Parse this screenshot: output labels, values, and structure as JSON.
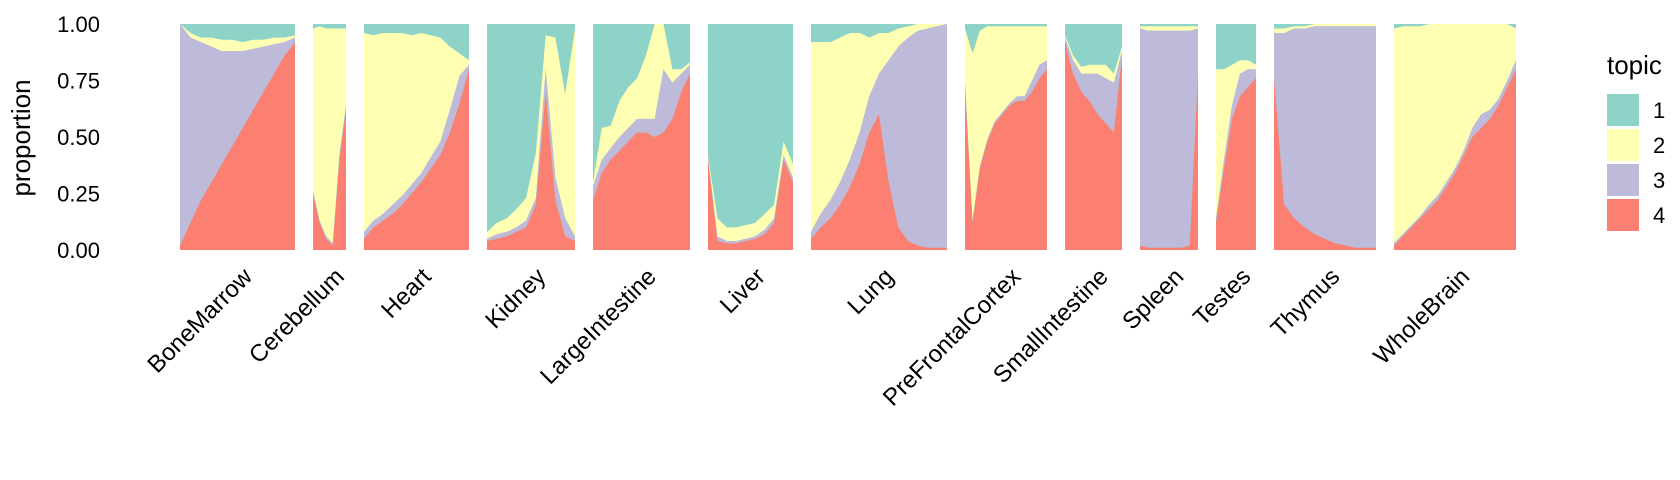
{
  "chart_data": {
    "type": "stacked-area",
    "ylabel": "proportion",
    "xlabel": "",
    "ylim": [
      0,
      1
    ],
    "yticks": [
      "0.00",
      "0.25",
      "0.50",
      "0.75",
      "1.00"
    ],
    "grid": false,
    "legend": {
      "title": "topic",
      "position": "right",
      "entries": [
        "1",
        "2",
        "3",
        "4"
      ]
    },
    "colors": {
      "1": "#8DD3C7",
      "2": "#FFFFB3",
      "3": "#BEBADA",
      "4": "#FB8072"
    },
    "series_order_bottom_to_top": [
      "4",
      "3",
      "2",
      "1"
    ],
    "panels": [
      {
        "name": "BoneMarrow",
        "topic4": [
          0.02,
          0.12,
          0.22,
          0.3,
          0.38,
          0.46,
          0.54,
          0.62,
          0.7,
          0.78,
          0.86,
          0.92
        ],
        "topic3": [
          0.98,
          0.82,
          0.7,
          0.6,
          0.5,
          0.42,
          0.34,
          0.27,
          0.2,
          0.13,
          0.06,
          0.02
        ],
        "topic2": [
          0.0,
          0.02,
          0.02,
          0.04,
          0.05,
          0.05,
          0.04,
          0.04,
          0.03,
          0.03,
          0.02,
          0.01
        ]
      },
      {
        "name": "Cerebellum",
        "topic4": [
          0.25,
          0.12,
          0.05,
          0.02,
          0.4,
          0.62
        ],
        "topic3": [
          0.01,
          0.01,
          0.01,
          0.01,
          0.02,
          0.02
        ],
        "topic2": [
          0.72,
          0.86,
          0.92,
          0.95,
          0.56,
          0.34
        ]
      },
      {
        "name": "Heart",
        "topic4": [
          0.05,
          0.1,
          0.13,
          0.16,
          0.2,
          0.25,
          0.3,
          0.36,
          0.42,
          0.52,
          0.65,
          0.8
        ],
        "topic3": [
          0.03,
          0.03,
          0.03,
          0.04,
          0.04,
          0.04,
          0.04,
          0.05,
          0.06,
          0.1,
          0.12,
          0.02
        ],
        "topic2": [
          0.88,
          0.82,
          0.8,
          0.76,
          0.72,
          0.66,
          0.62,
          0.54,
          0.46,
          0.28,
          0.1,
          0.02
        ]
      },
      {
        "name": "Kidney",
        "topic4": [
          0.04,
          0.05,
          0.06,
          0.08,
          0.1,
          0.2,
          0.7,
          0.22,
          0.06,
          0.04
        ],
        "topic3": [
          0.01,
          0.02,
          0.02,
          0.02,
          0.03,
          0.03,
          0.1,
          0.1,
          0.08,
          0.02
        ],
        "topic2": [
          0.03,
          0.05,
          0.06,
          0.08,
          0.1,
          0.2,
          0.15,
          0.62,
          0.55,
          0.92
        ]
      },
      {
        "name": "LargeIntestine",
        "topic4": [
          0.22,
          0.34,
          0.4,
          0.44,
          0.48,
          0.52,
          0.52,
          0.5,
          0.52,
          0.58,
          0.7,
          0.78
        ],
        "topic3": [
          0.06,
          0.06,
          0.05,
          0.06,
          0.06,
          0.06,
          0.06,
          0.08,
          0.28,
          0.16,
          0.08,
          0.04
        ],
        "topic2": [
          0.02,
          0.14,
          0.1,
          0.16,
          0.18,
          0.18,
          0.28,
          0.42,
          0.26,
          0.06,
          0.02,
          0.01
        ]
      },
      {
        "name": "Liver",
        "topic4": [
          0.4,
          0.04,
          0.03,
          0.03,
          0.04,
          0.05,
          0.07,
          0.12,
          0.4,
          0.3
        ],
        "topic3": [
          0.01,
          0.02,
          0.01,
          0.01,
          0.01,
          0.01,
          0.02,
          0.02,
          0.02,
          0.02
        ],
        "topic2": [
          0.01,
          0.08,
          0.06,
          0.06,
          0.06,
          0.06,
          0.07,
          0.06,
          0.06,
          0.06
        ]
      },
      {
        "name": "Lung",
        "topic4": [
          0.05,
          0.1,
          0.14,
          0.2,
          0.28,
          0.38,
          0.52,
          0.6,
          0.3,
          0.1,
          0.04,
          0.02,
          0.01,
          0.01,
          0.01
        ],
        "topic3": [
          0.03,
          0.06,
          0.08,
          0.1,
          0.12,
          0.14,
          0.16,
          0.18,
          0.54,
          0.8,
          0.9,
          0.95,
          0.97,
          0.98,
          0.99
        ],
        "topic2": [
          0.84,
          0.76,
          0.7,
          0.64,
          0.56,
          0.44,
          0.26,
          0.18,
          0.12,
          0.08,
          0.05,
          0.03,
          0.02,
          0.01,
          0.0
        ]
      },
      {
        "name": "PreFrontalCortex",
        "topic4": [
          0.72,
          0.12,
          0.36,
          0.48,
          0.56,
          0.6,
          0.64,
          0.66,
          0.66,
          0.7,
          0.76,
          0.8
        ],
        "topic3": [
          0.02,
          0.01,
          0.01,
          0.01,
          0.01,
          0.01,
          0.01,
          0.02,
          0.02,
          0.05,
          0.06,
          0.04
        ],
        "topic2": [
          0.24,
          0.74,
          0.6,
          0.5,
          0.42,
          0.38,
          0.34,
          0.31,
          0.31,
          0.24,
          0.17,
          0.15
        ]
      },
      {
        "name": "SmallIntestine",
        "topic4": [
          0.92,
          0.78,
          0.7,
          0.66,
          0.6,
          0.56,
          0.52,
          0.86
        ],
        "topic3": [
          0.02,
          0.06,
          0.08,
          0.12,
          0.18,
          0.2,
          0.22,
          0.02
        ],
        "topic2": [
          0.01,
          0.02,
          0.03,
          0.04,
          0.04,
          0.06,
          0.04,
          0.02
        ]
      },
      {
        "name": "Spleen",
        "topic4": [
          0.02,
          0.01,
          0.01,
          0.01,
          0.01,
          0.01,
          0.02,
          0.78
        ],
        "topic3": [
          0.96,
          0.96,
          0.96,
          0.96,
          0.96,
          0.96,
          0.95,
          0.2
        ],
        "topic2": [
          0.01,
          0.02,
          0.02,
          0.02,
          0.02,
          0.02,
          0.02,
          0.01
        ]
      },
      {
        "name": "Testes",
        "topic4": [
          0.12,
          0.36,
          0.58,
          0.68,
          0.72,
          0.76
        ],
        "topic3": [
          0.02,
          0.04,
          0.06,
          0.1,
          0.08,
          0.04
        ],
        "topic2": [
          0.66,
          0.4,
          0.18,
          0.06,
          0.04,
          0.02
        ]
      },
      {
        "name": "Thymus",
        "topic4": [
          0.76,
          0.2,
          0.14,
          0.1,
          0.07,
          0.05,
          0.03,
          0.02,
          0.01,
          0.01,
          0.01
        ],
        "topic3": [
          0.2,
          0.76,
          0.84,
          0.88,
          0.92,
          0.94,
          0.96,
          0.97,
          0.98,
          0.98,
          0.98
        ],
        "topic2": [
          0.02,
          0.02,
          0.01,
          0.01,
          0.01,
          0.01,
          0.01,
          0.01,
          0.01,
          0.01,
          0.01
        ]
      },
      {
        "name": "WholeBrain",
        "topic4": [
          0.02,
          0.06,
          0.1,
          0.14,
          0.18,
          0.22,
          0.28,
          0.34,
          0.42,
          0.5,
          0.54,
          0.58,
          0.64,
          0.72,
          0.8
        ],
        "topic3": [
          0.01,
          0.01,
          0.01,
          0.01,
          0.02,
          0.02,
          0.02,
          0.02,
          0.02,
          0.04,
          0.06,
          0.04,
          0.03,
          0.03,
          0.04
        ],
        "topic2": [
          0.95,
          0.92,
          0.88,
          0.84,
          0.8,
          0.76,
          0.7,
          0.64,
          0.56,
          0.46,
          0.4,
          0.38,
          0.33,
          0.25,
          0.14
        ]
      }
    ]
  }
}
